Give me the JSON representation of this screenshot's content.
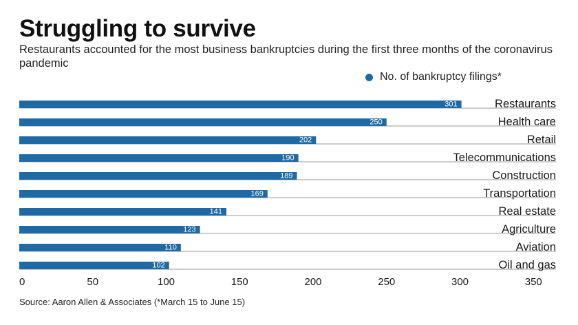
{
  "header": {
    "title": "Struggling to survive",
    "subtitle": "Restaurants accounted for the most business bankruptcies during the first three months of the coronavirus pandemic"
  },
  "colors": {
    "bar": "#1f6aa5",
    "rule": "#9a9a9a",
    "text": "#1a1a1a",
    "bar_label": "#ffffff"
  },
  "chart_data": {
    "type": "bar",
    "orientation": "horizontal",
    "categories": [
      "Restaurants",
      "Health care",
      "Retail",
      "Telecommunications",
      "Construction",
      "Transportation",
      "Real estate",
      "Agriculture",
      "Aviation",
      "Oil and gas"
    ],
    "series": [
      {
        "name": "No. of bankruptcy filings*",
        "values": [
          301,
          250,
          202,
          190,
          189,
          169,
          141,
          123,
          110,
          102
        ]
      }
    ],
    "xlim": [
      0,
      350
    ],
    "xticks": [
      0,
      50,
      100,
      150,
      200,
      250,
      300,
      350
    ],
    "legend_position": "top-right",
    "grid": false
  },
  "footer": {
    "source": "Source: Aaron Allen & Associates (*March 15 to June 15)"
  }
}
